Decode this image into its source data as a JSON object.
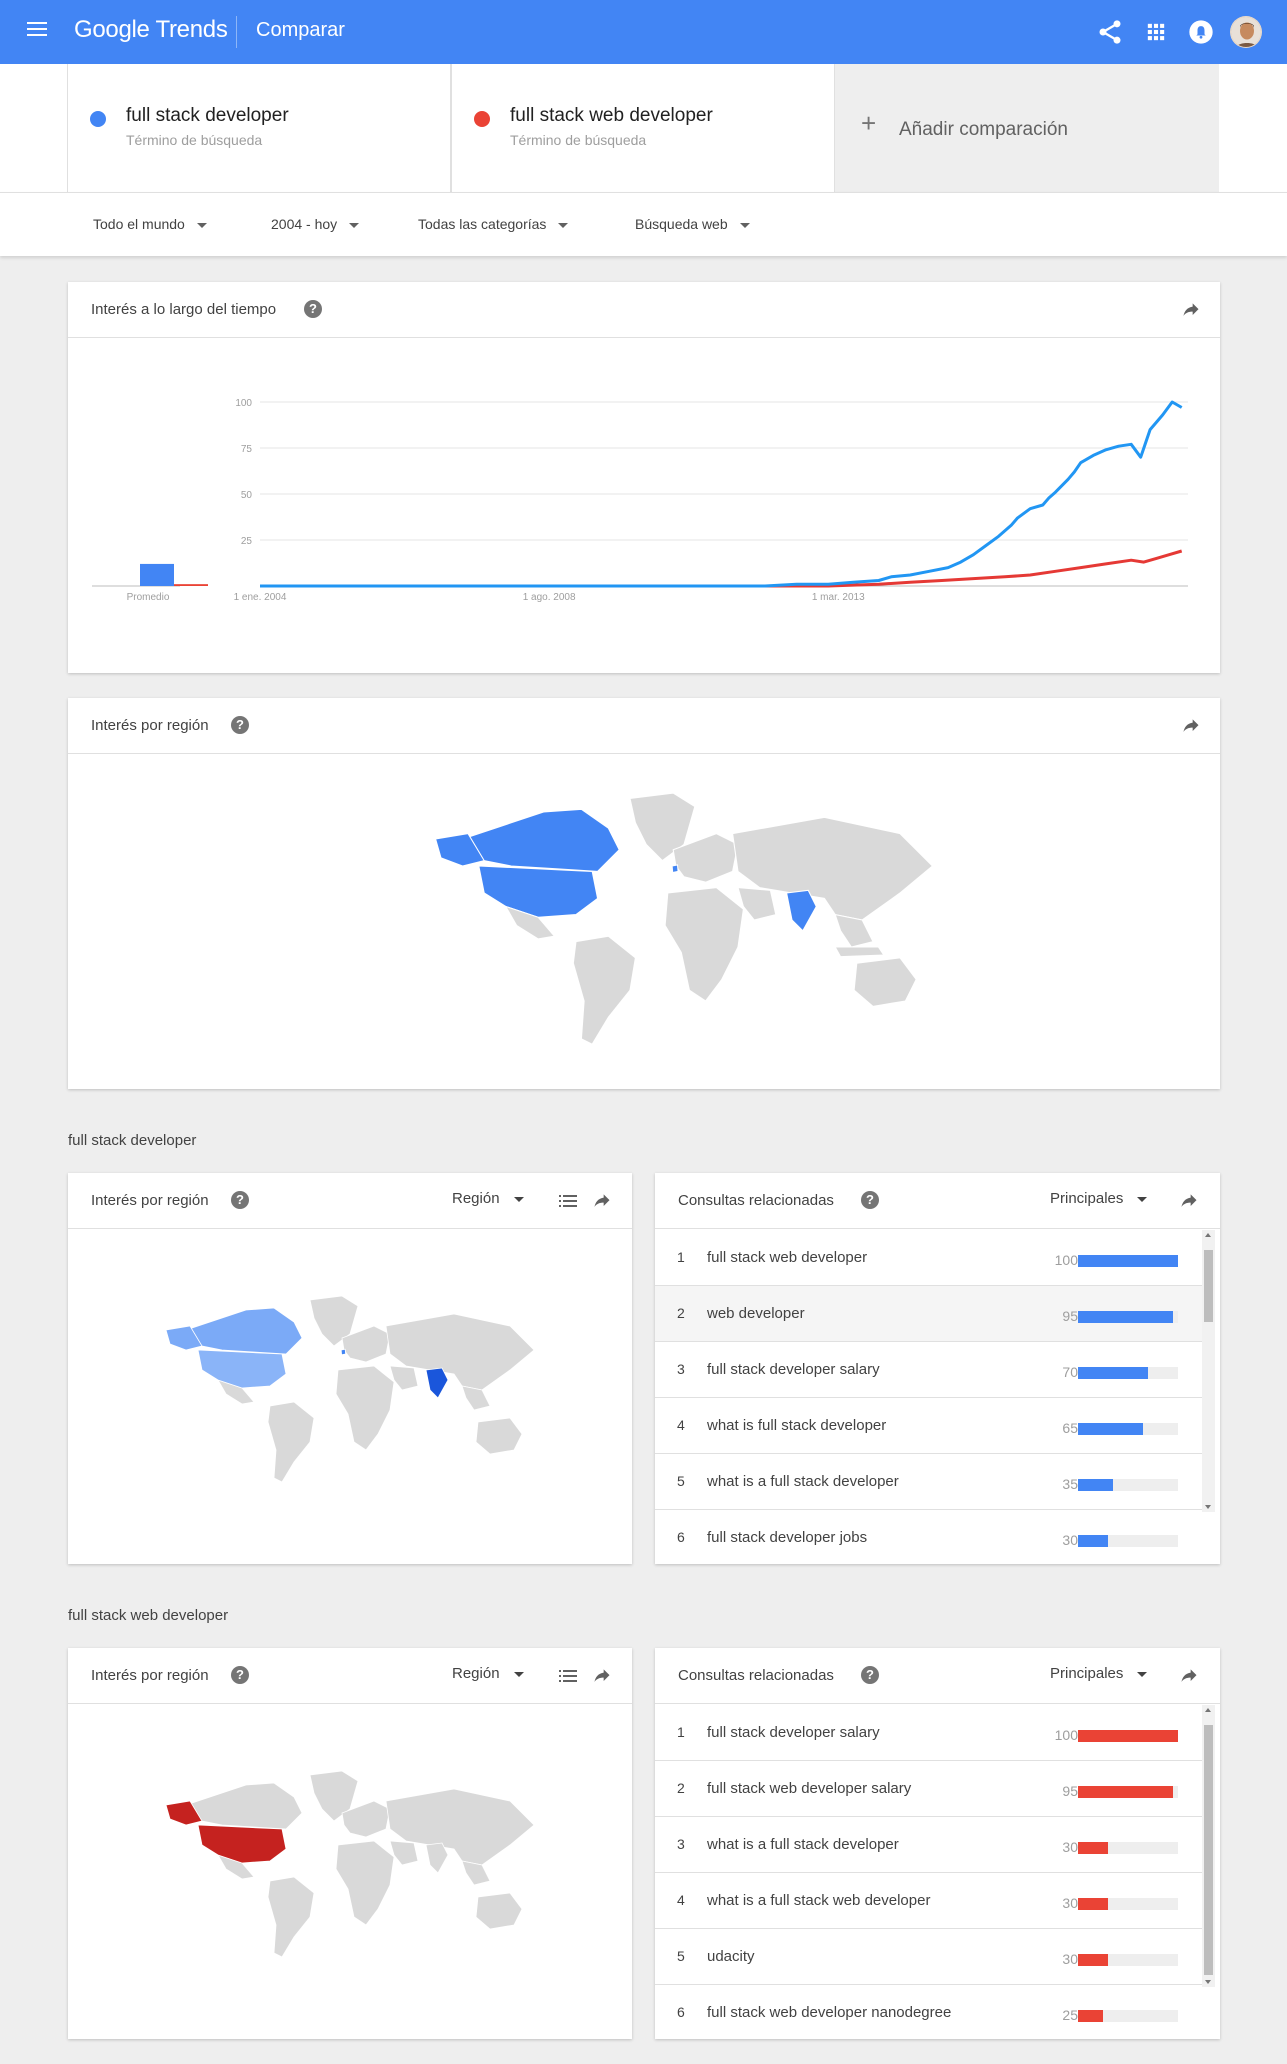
{
  "header": {
    "logo": "Google Trends",
    "title": "Comparar"
  },
  "terms": [
    {
      "name": "full stack developer",
      "type": "Término de búsqueda",
      "color": "#4285f4"
    },
    {
      "name": "full stack web developer",
      "type": "Término de búsqueda",
      "color": "#ea4335"
    }
  ],
  "add_comparison": {
    "plus": "+",
    "label": "Añadir comparación"
  },
  "filters": {
    "location": "Todo el mundo",
    "time": "2004 - hoy",
    "category": "Todas las categorías",
    "search_type": "Búsqueda web"
  },
  "interest_over_time": {
    "title": "Interés a lo largo del tiempo",
    "help": "?",
    "average_label": "Promedio"
  },
  "chart_data": {
    "type": "line",
    "yticks": [
      100,
      75,
      50,
      25
    ],
    "ylim": [
      0,
      100
    ],
    "xtick_labels": [
      "1 ene. 2004",
      "1 ago. 2008",
      "1 mar. 2013"
    ],
    "averages": [
      12,
      1
    ],
    "series": [
      {
        "name": "full stack developer",
        "color": "#4285f4",
        "points": [
          [
            2004.0,
            0
          ],
          [
            2011.5,
            0
          ],
          [
            2012.0,
            0
          ],
          [
            2012.5,
            1
          ],
          [
            2013.0,
            1
          ],
          [
            2013.4,
            2
          ],
          [
            2013.8,
            3
          ],
          [
            2014.0,
            5
          ],
          [
            2014.3,
            6
          ],
          [
            2014.6,
            8
          ],
          [
            2014.9,
            10
          ],
          [
            2015.1,
            13
          ],
          [
            2015.3,
            17
          ],
          [
            2015.5,
            22
          ],
          [
            2015.7,
            27
          ],
          [
            2015.9,
            33
          ],
          [
            2016.0,
            37
          ],
          [
            2016.2,
            42
          ],
          [
            2016.4,
            44
          ],
          [
            2016.5,
            48
          ],
          [
            2016.6,
            51
          ],
          [
            2016.8,
            58
          ],
          [
            2016.9,
            62
          ],
          [
            2017.0,
            67
          ],
          [
            2017.2,
            71
          ],
          [
            2017.4,
            74
          ],
          [
            2017.6,
            76
          ],
          [
            2017.8,
            77
          ],
          [
            2017.95,
            70
          ],
          [
            2018.1,
            85
          ],
          [
            2018.3,
            93
          ],
          [
            2018.45,
            100
          ],
          [
            2018.6,
            97
          ]
        ]
      },
      {
        "name": "full stack web developer",
        "color": "#ea4335",
        "points": [
          [
            2004.0,
            0
          ],
          [
            2012.0,
            0
          ],
          [
            2013.0,
            0
          ],
          [
            2013.8,
            1
          ],
          [
            2014.3,
            2
          ],
          [
            2014.8,
            3
          ],
          [
            2015.3,
            4
          ],
          [
            2015.8,
            5
          ],
          [
            2016.2,
            6
          ],
          [
            2016.6,
            8
          ],
          [
            2017.0,
            10
          ],
          [
            2017.4,
            12
          ],
          [
            2017.8,
            14
          ],
          [
            2018.0,
            13
          ],
          [
            2018.2,
            15
          ],
          [
            2018.4,
            17
          ],
          [
            2018.6,
            19
          ]
        ]
      }
    ]
  },
  "region_combined": {
    "title": "Interés por región",
    "help": "?"
  },
  "sections": [
    {
      "label": "full stack developer",
      "region_title": "Interés por región",
      "region_dropdown": "Región",
      "related_title": "Consultas relacionadas",
      "related_dropdown": "Principales",
      "bar_color": "#4285f4",
      "queries": [
        {
          "rank": "1",
          "text": "full stack web developer",
          "value": 100
        },
        {
          "rank": "2",
          "text": "web developer",
          "value": 95
        },
        {
          "rank": "3",
          "text": "full stack developer salary",
          "value": 70
        },
        {
          "rank": "4",
          "text": "what is full stack developer",
          "value": 65
        },
        {
          "rank": "5",
          "text": "what is a full stack developer",
          "value": 35
        },
        {
          "rank": "6",
          "text": "full stack developer jobs",
          "value": 30
        }
      ]
    },
    {
      "label": "full stack web developer",
      "region_title": "Interés por región",
      "region_dropdown": "Región",
      "related_title": "Consultas relacionadas",
      "related_dropdown": "Principales",
      "bar_color": "#ea4335",
      "queries": [
        {
          "rank": "1",
          "text": "full stack developer salary",
          "value": 100
        },
        {
          "rank": "2",
          "text": "full stack web developer salary",
          "value": 95
        },
        {
          "rank": "3",
          "text": "what is a full stack developer",
          "value": 30
        },
        {
          "rank": "4",
          "text": "what is a full stack web developer",
          "value": 30
        },
        {
          "rank": "5",
          "text": "udacity",
          "value": 30
        },
        {
          "rank": "6",
          "text": "full stack web developer nanodegree",
          "value": 25
        }
      ]
    }
  ]
}
